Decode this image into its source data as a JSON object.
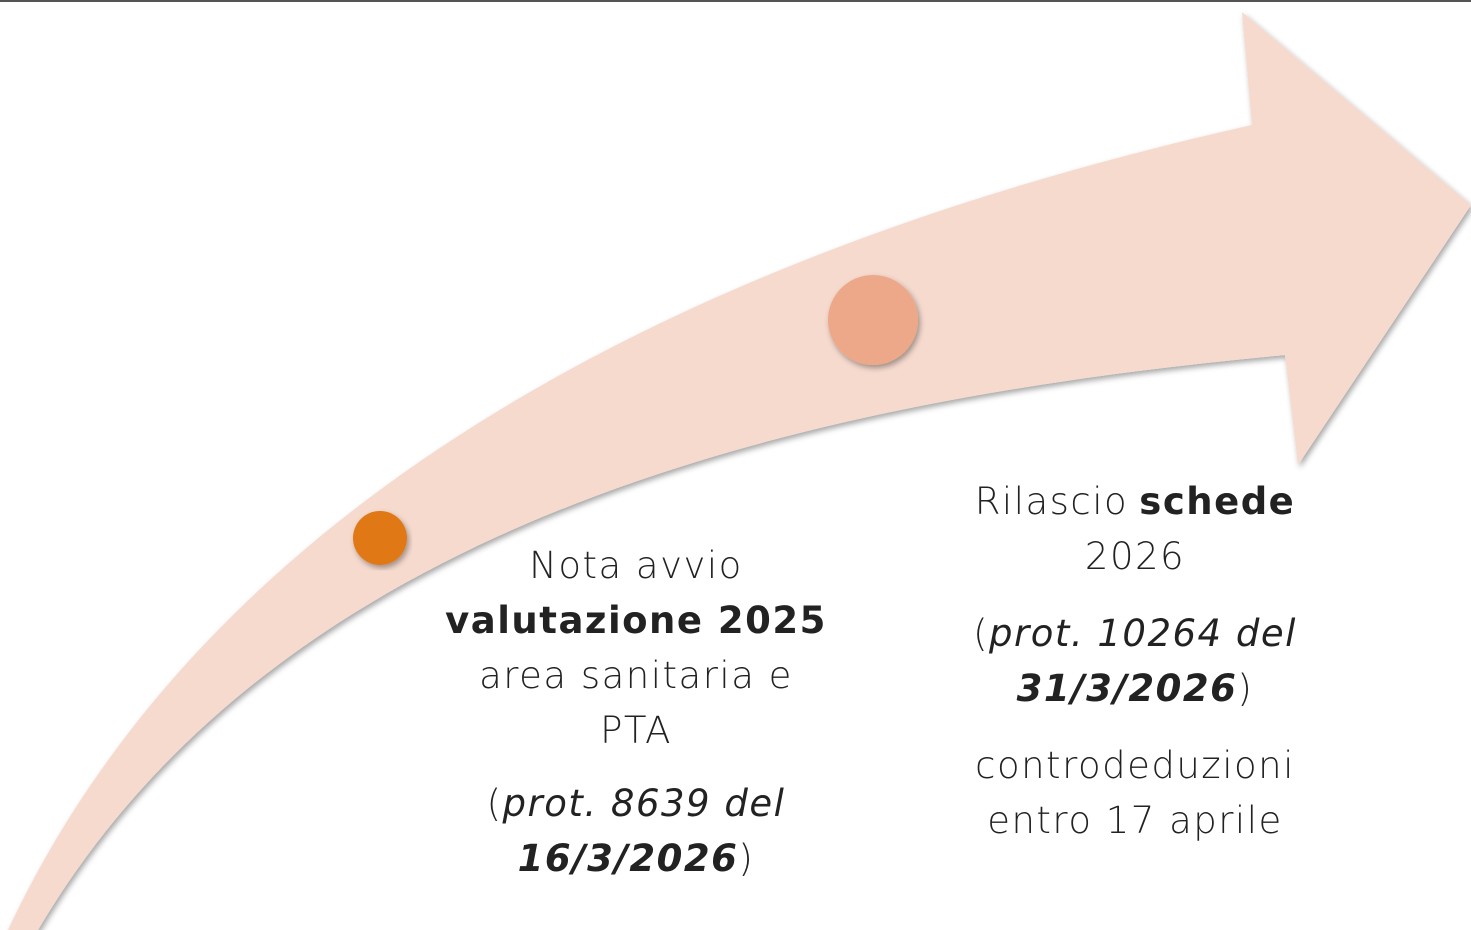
{
  "milestones": [
    {
      "paragraphs": [
        {
          "lines": [
            [
              {
                "text": "Nota avvio"
              }
            ],
            [
              {
                "text": "valutazione 2025",
                "bold": true
              }
            ],
            [
              {
                "text": "area sanitaria e"
              }
            ],
            [
              {
                "text": "PTA"
              }
            ]
          ]
        },
        {
          "lines": [
            [
              {
                "text": "("
              },
              {
                "text": "prot. 8639 del",
                "italic": true
              }
            ],
            [
              {
                "text": "16/3/2026",
                "bold": true,
                "italic": true
              },
              {
                "text": ")"
              }
            ]
          ]
        }
      ]
    },
    {
      "paragraphs": [
        {
          "lines": [
            [
              {
                "text": "Rilascio"
              },
              {
                "text": "schede",
                "bold": true
              }
            ],
            [
              {
                "text": "2026"
              }
            ]
          ]
        },
        {
          "lines": [
            [
              {
                "text": "("
              },
              {
                "text": "prot. 10264 del",
                "italic": true
              }
            ],
            [
              {
                "text": "31/3/2026",
                "bold": true,
                "italic": true
              },
              {
                "text": ")"
              }
            ]
          ]
        },
        {
          "lines": [
            [
              {
                "text": "controdeduzioni"
              }
            ],
            [
              {
                "text": "entro 17 aprile"
              }
            ]
          ]
        }
      ]
    }
  ]
}
